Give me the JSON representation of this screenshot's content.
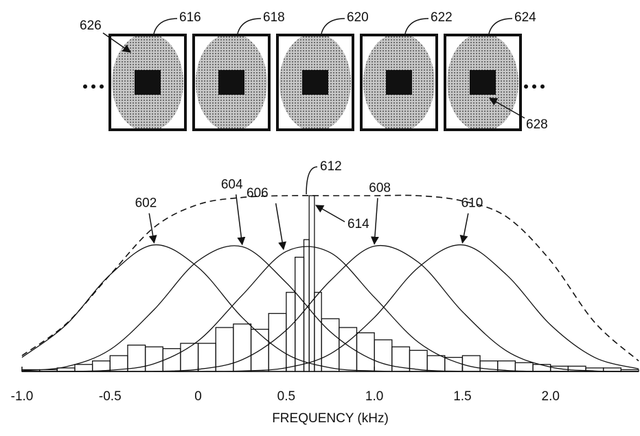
{
  "figure": {
    "frames": [
      "616",
      "618",
      "620",
      "622",
      "624"
    ],
    "callouts": [
      "626",
      "628"
    ]
  },
  "chart_data": [
    {
      "type": "line",
      "xlabel": "FREQUENCY (kHz)",
      "x": [
        -1.0,
        -0.75,
        -0.5,
        -0.25,
        0,
        0.25,
        0.5,
        0.75,
        1.0,
        1.25,
        1.5,
        1.75,
        2.0,
        2.25,
        2.5
      ],
      "xlim": [
        -1.0,
        2.5
      ],
      "ylim": [
        0,
        100
      ],
      "xticks": [
        {
          "value": -1,
          "label": "-1.0"
        },
        -0.5,
        0,
        0.5,
        {
          "value": 1,
          "label": "1.0"
        },
        1.5,
        {
          "value": 2,
          "label": "2.0"
        }
      ],
      "series": [
        {
          "label": "602",
          "color": "#111111",
          "values": [
            8.0,
            26.5,
            55,
            72,
            59.2,
            30.7,
            10.0,
            2.1,
            0.3,
            0,
            0,
            0,
            0,
            0,
            0
          ]
        },
        {
          "label": "604",
          "color": "#111111",
          "values": [
            0.4,
            2.7,
            12.4,
            35.2,
            63,
            71.0,
            50.5,
            22.6,
            6.3,
            1.1,
            0.1,
            0,
            0,
            0,
            0
          ]
        },
        {
          "label": "606",
          "color": "#111111",
          "values": [
            0,
            0.1,
            0.7,
            4.4,
            17.4,
            43.4,
            68.3,
            67.6,
            42.2,
            16.6,
            4.1,
            0.6,
            0.1,
            0,
            0
          ]
        },
        {
          "label": "608",
          "color": "#111111",
          "values": [
            0,
            0,
            0,
            0.1,
            1.2,
            6.7,
            23.5,
            51.6,
            71.3,
            62.1,
            34.0,
            11.7,
            2.5,
            0.3,
            0
          ]
        },
        {
          "label": "610",
          "color": "#111111",
          "values": [
            0,
            0,
            0,
            0,
            0,
            0.3,
            2.1,
            10.0,
            30.7,
            59.2,
            72,
            55,
            26.5,
            8.0,
            1.5
          ]
        },
        {
          "color": "#111111",
          "dashed": true,
          "values": [
            9,
            27,
            55,
            82,
            95,
            99,
            100,
            100,
            100,
            100,
            97,
            88,
            63,
            28,
            6
          ]
        }
      ]
    },
    {
      "type": "histogram",
      "color": "#111111",
      "xlim": [
        -1.0,
        2.5
      ],
      "ylim": [
        0,
        100
      ],
      "annotations": [
        "612",
        "614"
      ],
      "bins": [
        -1.0,
        -0.9,
        -0.8,
        -0.7,
        -0.6,
        -0.5,
        -0.4,
        -0.3,
        -0.2,
        -0.1,
        0,
        0.1,
        0.2,
        0.3,
        0.4,
        0.5,
        0.55,
        0.6,
        0.63,
        0.66,
        0.7,
        0.8,
        0.9,
        1.0,
        1.1,
        1.2,
        1.3,
        1.4,
        1.5,
        1.6,
        1.7,
        1.8,
        1.9,
        2.0,
        2.1,
        2.2,
        2.3,
        2.4,
        2.5
      ],
      "values": [
        1,
        1,
        2,
        4,
        6,
        9,
        15,
        14,
        13,
        16,
        16,
        25,
        27,
        24,
        33,
        45,
        65,
        75,
        100,
        45,
        30,
        25,
        22,
        18,
        14,
        12,
        9,
        8,
        9,
        6,
        6,
        5,
        4,
        3,
        3,
        2,
        2,
        1
      ]
    }
  ]
}
